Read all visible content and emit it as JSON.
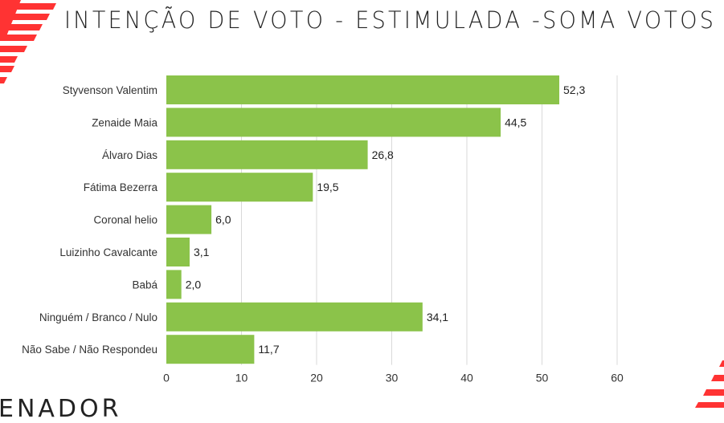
{
  "header": {
    "title": "INTENÇÃO DE VOTO - ESTIMULADA -SOMA VOTOS"
  },
  "footer": {
    "text": "ENADOR"
  },
  "colors": {
    "bar": "#8bc34a",
    "accent": "#ff3333",
    "grid": "#d9d9d9"
  },
  "chart_data": {
    "type": "bar",
    "orientation": "horizontal",
    "title": "INTENÇÃO DE VOTO - ESTIMULADA -SOMA VOTOS",
    "categories": [
      "Styvenson Valentim",
      "Zenaide Maia",
      "Álvaro Dias",
      "Fátima Bezerra",
      "Coronal helio",
      "Luizinho Cavalcante",
      "Babá",
      "Ninguém / Branco / Nulo",
      "Não Sabe / Não Respondeu"
    ],
    "values": [
      52.3,
      44.5,
      26.8,
      19.5,
      6.0,
      3.1,
      2.0,
      34.1,
      11.7
    ],
    "value_labels": [
      "52,3",
      "44,5",
      "26,8",
      "19,5",
      "6,0",
      "3,1",
      "2,0",
      "34,1",
      "11,7"
    ],
    "xlim": [
      0,
      60
    ],
    "xticks": [
      0,
      10,
      20,
      30,
      40,
      50,
      60
    ],
    "xtick_labels": [
      "0",
      "10",
      "20",
      "30",
      "40",
      "50",
      "60"
    ],
    "grid": true,
    "xlabel": "",
    "ylabel": ""
  }
}
